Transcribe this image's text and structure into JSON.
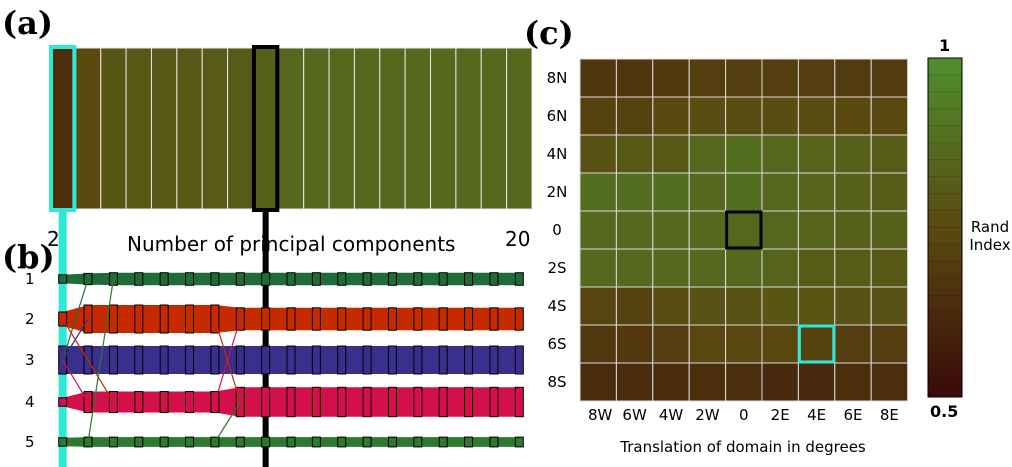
{
  "panel_labels": {
    "a": "(a)",
    "b": "(b)",
    "c": "(c)"
  },
  "chart_data": [
    {
      "type": "heatmap",
      "panel": "(a)",
      "xlabel": "Number of principal components",
      "x_tick_labels": [
        "2",
        "20"
      ],
      "x": [
        2,
        3,
        4,
        5,
        6,
        7,
        8,
        9,
        10,
        11,
        12,
        13,
        14,
        15,
        16,
        17,
        18,
        19,
        20
      ],
      "values": [
        0.64,
        0.75,
        0.79,
        0.8,
        0.8,
        0.8,
        0.81,
        0.81,
        0.83,
        0.85,
        0.86,
        0.86,
        0.86,
        0.86,
        0.86,
        0.86,
        0.86,
        0.86,
        0.86
      ],
      "highlight_cyan": 2,
      "highlight_black": 10
    },
    {
      "type": "alluvial",
      "panel": "(b)",
      "y_tick_labels": [
        "1",
        "2",
        "3",
        "4",
        "5"
      ],
      "x": [
        2,
        3,
        4,
        5,
        6,
        7,
        8,
        9,
        10,
        11,
        12,
        13,
        14,
        15,
        16,
        17,
        18,
        19,
        20
      ],
      "clusters": [
        {
          "label": "1",
          "color": "#1f6b3a",
          "sizes": [
            0.3,
            0.4,
            0.45,
            0.45,
            0.45,
            0.45,
            0.45,
            0.45,
            0.45,
            0.45,
            0.45,
            0.45,
            0.45,
            0.45,
            0.45,
            0.45,
            0.45,
            0.45,
            0.45
          ]
        },
        {
          "label": "2",
          "color": "#c62a00",
          "sizes": [
            0.5,
            1.0,
            1.0,
            1.0,
            1.0,
            1.0,
            1.0,
            0.8,
            0.8,
            0.8,
            0.8,
            0.8,
            0.8,
            0.8,
            0.8,
            0.8,
            0.8,
            0.8,
            0.8
          ]
        },
        {
          "label": "3",
          "color": "#3a2f8c",
          "sizes": [
            1.0,
            1.0,
            1.0,
            1.0,
            1.0,
            1.0,
            1.0,
            1.0,
            1.0,
            1.0,
            1.0,
            1.0,
            1.0,
            1.0,
            1.0,
            1.0,
            1.0,
            1.0,
            1.0
          ]
        },
        {
          "label": "4",
          "color": "#d4104b",
          "sizes": [
            0.3,
            0.75,
            0.75,
            0.75,
            0.75,
            0.75,
            0.75,
            1.05,
            1.05,
            1.05,
            1.05,
            1.05,
            1.05,
            1.05,
            1.05,
            1.05,
            1.05,
            1.05,
            1.05
          ]
        },
        {
          "label": "5",
          "color": "#2c7a2e",
          "sizes": [
            0.3,
            0.35,
            0.35,
            0.35,
            0.35,
            0.35,
            0.35,
            0.35,
            0.35,
            0.35,
            0.35,
            0.35,
            0.35,
            0.35,
            0.35,
            0.35,
            0.35,
            0.35,
            0.35
          ]
        }
      ],
      "highlight_cyan": 2,
      "highlight_black": 10
    },
    {
      "type": "heatmap",
      "panel": "(c)",
      "xlabel": "Translation of domain in degrees",
      "x_tick_labels": [
        "8W",
        "6W",
        "4W",
        "2W",
        "0",
        "2E",
        "4E",
        "6E",
        "8E"
      ],
      "y_tick_labels": [
        "8N",
        "6N",
        "4N",
        "2N",
        "0",
        "2S",
        "4S",
        "6S",
        "8S"
      ],
      "values": [
        [
          0.67,
          0.67,
          0.68,
          0.7,
          0.7,
          0.7,
          0.7,
          0.69,
          0.69
        ],
        [
          0.72,
          0.72,
          0.75,
          0.76,
          0.76,
          0.76,
          0.76,
          0.75,
          0.74
        ],
        [
          0.78,
          0.8,
          0.8,
          0.86,
          0.88,
          0.85,
          0.84,
          0.83,
          0.82
        ],
        [
          0.88,
          0.88,
          0.88,
          0.86,
          0.88,
          0.85,
          0.84,
          0.83,
          0.82
        ],
        [
          0.86,
          0.86,
          0.86,
          0.86,
          0.85,
          0.85,
          0.84,
          0.83,
          0.83
        ],
        [
          0.86,
          0.86,
          0.86,
          0.86,
          0.86,
          0.84,
          0.82,
          0.82,
          0.8
        ],
        [
          0.73,
          0.72,
          0.76,
          0.78,
          0.78,
          0.79,
          0.79,
          0.78,
          0.78
        ],
        [
          0.68,
          0.68,
          0.7,
          0.74,
          0.74,
          0.74,
          0.72,
          0.7,
          0.7
        ],
        [
          0.63,
          0.63,
          0.63,
          0.64,
          0.64,
          0.62,
          0.62,
          0.64,
          0.64
        ]
      ],
      "highlight_black": {
        "row": 4,
        "col": 4
      },
      "highlight_cyan": {
        "row": 7,
        "col": 6
      },
      "colorbar": {
        "label": "Rand Index",
        "min": 0.5,
        "max": 1,
        "min_label": "0.5",
        "max_label": "1"
      },
      "colors": {
        "low": "#3a0a0a",
        "mid": "#5a4a10",
        "high": "#4f8f2f"
      }
    }
  ]
}
